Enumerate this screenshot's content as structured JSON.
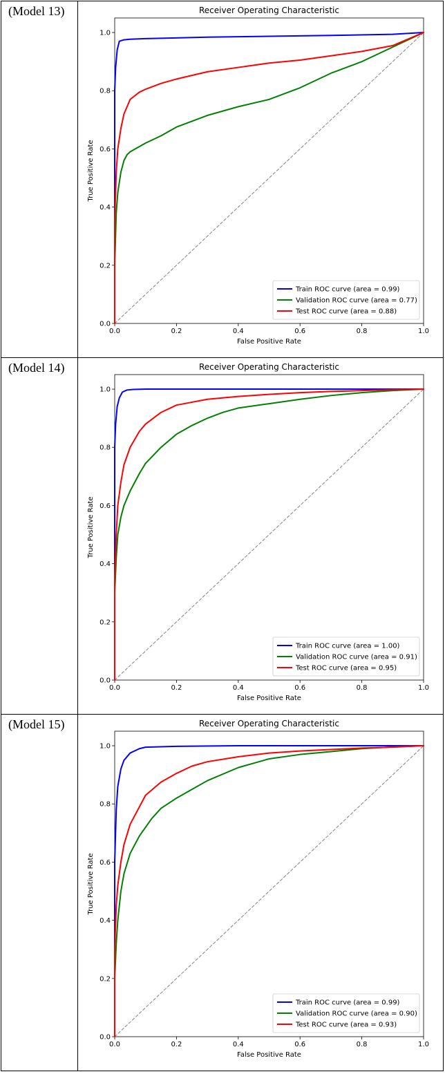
{
  "models": [
    {
      "label": "(Model 13)",
      "chart_data": {
        "type": "line",
        "title": "Receiver Operating Characteristic",
        "xlabel": "False Positive Rate",
        "ylabel": "True Positive Rate",
        "xlim": [
          0,
          1.0
        ],
        "ylim": [
          0,
          1.0
        ],
        "xticks": [
          "0.0",
          "0.2",
          "0.4",
          "0.6",
          "0.8",
          "1.0"
        ],
        "yticks": [
          "0.0",
          "0.2",
          "0.4",
          "0.6",
          "0.8",
          "1.0"
        ],
        "legend_position": "lower-right",
        "series": [
          {
            "name": "Train ROC curve (area = 0.99)",
            "color": "#0000ff",
            "x": [
              0,
              0,
              0.003,
              0.008,
              0.015,
              0.03,
              0.05,
              0.1,
              0.3,
              0.5,
              0.7,
              0.9,
              1.0
            ],
            "y": [
              0,
              0.8,
              0.88,
              0.94,
              0.97,
              0.975,
              0.977,
              0.979,
              0.984,
              0.987,
              0.99,
              0.994,
              1.0
            ]
          },
          {
            "name": "Validation ROC curve (area = 0.77)",
            "color": "#008000",
            "x": [
              0,
              0,
              0.005,
              0.01,
              0.02,
              0.03,
              0.04,
              0.05,
              0.1,
              0.15,
              0.2,
              0.3,
              0.4,
              0.5,
              0.6,
              0.7,
              0.8,
              0.9,
              1.0
            ],
            "y": [
              0,
              0.2,
              0.38,
              0.45,
              0.52,
              0.56,
              0.58,
              0.59,
              0.62,
              0.645,
              0.675,
              0.715,
              0.745,
              0.77,
              0.81,
              0.86,
              0.9,
              0.95,
              1.0
            ]
          },
          {
            "name": "Test ROC curve (area = 0.88)",
            "color": "#ff0000",
            "x": [
              0,
              0,
              0.005,
              0.01,
              0.02,
              0.03,
              0.05,
              0.08,
              0.1,
              0.15,
              0.2,
              0.3,
              0.4,
              0.5,
              0.6,
              0.7,
              0.8,
              0.9,
              1.0
            ],
            "y": [
              0,
              0.35,
              0.52,
              0.6,
              0.67,
              0.72,
              0.77,
              0.795,
              0.805,
              0.825,
              0.84,
              0.865,
              0.88,
              0.895,
              0.905,
              0.92,
              0.935,
              0.955,
              1.0
            ]
          },
          {
            "name": "",
            "color": "#808080",
            "dashed": true,
            "x": [
              0,
              1
            ],
            "y": [
              0,
              1
            ]
          }
        ]
      }
    },
    {
      "label": "(Model 14)",
      "chart_data": {
        "type": "line",
        "title": "Receiver Operating Characteristic",
        "xlabel": "False Positive Rate",
        "ylabel": "True Positive Rate",
        "xlim": [
          0,
          1.0
        ],
        "ylim": [
          0,
          1.0
        ],
        "xticks": [
          "0.0",
          "0.2",
          "0.4",
          "0.6",
          "0.8",
          "1.0"
        ],
        "yticks": [
          "0.0",
          "0.2",
          "0.4",
          "0.6",
          "0.8",
          "1.0"
        ],
        "legend_position": "lower-right",
        "series": [
          {
            "name": "Train ROC curve (area = 1.00)",
            "color": "#0000ff",
            "x": [
              0,
              0,
              0.003,
              0.008,
              0.015,
              0.025,
              0.04,
              0.06,
              0.1,
              0.3,
              1.0
            ],
            "y": [
              0,
              0.8,
              0.88,
              0.94,
              0.97,
              0.99,
              0.997,
              0.999,
              1.0,
              1.0,
              1.0
            ]
          },
          {
            "name": "Validation ROC curve (area = 0.91)",
            "color": "#008000",
            "x": [
              0,
              0,
              0.005,
              0.01,
              0.02,
              0.03,
              0.05,
              0.08,
              0.1,
              0.15,
              0.2,
              0.25,
              0.3,
              0.35,
              0.4,
              0.5,
              0.6,
              0.7,
              0.8,
              0.9,
              1.0
            ],
            "y": [
              0,
              0.3,
              0.42,
              0.5,
              0.56,
              0.6,
              0.65,
              0.71,
              0.745,
              0.8,
              0.845,
              0.875,
              0.9,
              0.92,
              0.935,
              0.95,
              0.965,
              0.978,
              0.988,
              0.995,
              1.0
            ]
          },
          {
            "name": "Test ROC curve (area = 0.95)",
            "color": "#ff0000",
            "x": [
              0,
              0,
              0.005,
              0.01,
              0.02,
              0.03,
              0.05,
              0.08,
              0.1,
              0.15,
              0.2,
              0.3,
              0.4,
              0.5,
              0.6,
              0.7,
              0.8,
              0.9,
              1.0
            ],
            "y": [
              0,
              0.35,
              0.5,
              0.6,
              0.68,
              0.74,
              0.8,
              0.855,
              0.88,
              0.92,
              0.945,
              0.965,
              0.975,
              0.982,
              0.988,
              0.992,
              0.995,
              0.998,
              1.0
            ]
          },
          {
            "name": "",
            "color": "#808080",
            "dashed": true,
            "x": [
              0,
              1
            ],
            "y": [
              0,
              1
            ]
          }
        ]
      }
    },
    {
      "label": "(Model 15)",
      "chart_data": {
        "type": "line",
        "title": "Receiver Operating Characteristic",
        "xlabel": "False Positive Rate",
        "ylabel": "True Positive Rate",
        "xlim": [
          0,
          1.0
        ],
        "ylim": [
          0,
          1.0
        ],
        "xticks": [
          "0.0",
          "0.2",
          "0.4",
          "0.6",
          "0.8",
          "1.0"
        ],
        "yticks": [
          "0.0",
          "0.2",
          "0.4",
          "0.6",
          "0.8",
          "1.0"
        ],
        "legend_position": "lower-right",
        "series": [
          {
            "name": "Train ROC curve (area = 0.99)",
            "color": "#0000ff",
            "x": [
              0,
              0,
              0.005,
              0.01,
              0.02,
              0.03,
              0.05,
              0.08,
              0.1,
              0.2,
              0.4,
              1.0
            ],
            "y": [
              0,
              0.6,
              0.78,
              0.86,
              0.92,
              0.95,
              0.975,
              0.99,
              0.995,
              0.998,
              1.0,
              1.0
            ]
          },
          {
            "name": "Validation ROC curve (area = 0.90)",
            "color": "#008000",
            "x": [
              0,
              0,
              0.005,
              0.01,
              0.02,
              0.03,
              0.05,
              0.08,
              0.1,
              0.12,
              0.15,
              0.2,
              0.3,
              0.4,
              0.5,
              0.6,
              0.7,
              0.8,
              0.9,
              1.0
            ],
            "y": [
              0,
              0.2,
              0.32,
              0.4,
              0.5,
              0.56,
              0.63,
              0.69,
              0.72,
              0.75,
              0.785,
              0.82,
              0.88,
              0.925,
              0.955,
              0.97,
              0.98,
              0.99,
              0.996,
              1.0
            ]
          },
          {
            "name": "Test ROC curve (area = 0.93)",
            "color": "#ff0000",
            "x": [
              0,
              0,
              0.005,
              0.01,
              0.02,
              0.03,
              0.05,
              0.08,
              0.1,
              0.15,
              0.2,
              0.25,
              0.3,
              0.4,
              0.5,
              0.6,
              0.7,
              0.8,
              0.9,
              1.0
            ],
            "y": [
              0,
              0.3,
              0.45,
              0.52,
              0.6,
              0.66,
              0.73,
              0.79,
              0.83,
              0.875,
              0.905,
              0.93,
              0.945,
              0.962,
              0.975,
              0.982,
              0.987,
              0.992,
              0.995,
              1.0
            ]
          },
          {
            "name": "",
            "color": "#808080",
            "dashed": true,
            "x": [
              0,
              1
            ],
            "y": [
              0,
              1
            ]
          }
        ]
      }
    }
  ]
}
